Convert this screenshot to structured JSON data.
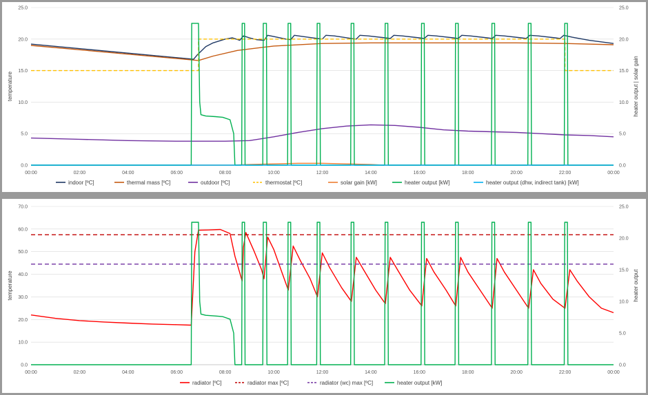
{
  "chart_data": [
    {
      "type": "line",
      "title": "",
      "ylabel": "temperature",
      "y2label": "heater output | solar gain",
      "ylim": [
        0,
        25
      ],
      "y2lim": [
        0,
        25
      ],
      "yticks": [
        "0.0",
        "5.0",
        "10.0",
        "15.0",
        "20.0",
        "25.0"
      ],
      "y2ticks": [
        "0.0",
        "5.0",
        "10.0",
        "15.0",
        "20.0",
        "25.0"
      ],
      "xticks": [
        "00:00",
        "02:00",
        "04:00",
        "06:00",
        "08:00",
        "10:00",
        "12:00",
        "14:00",
        "16:00",
        "18:00",
        "20:00",
        "22:00",
        "00:00"
      ],
      "grid": true,
      "legend": "bottom",
      "series": [
        {
          "name": "indoor [ºC]",
          "color": "#1f3864",
          "dash": "",
          "axis": "left",
          "x": [
            0,
            6.7,
            6.85,
            7.2,
            7.5,
            8,
            8.3,
            8.6,
            8.75,
            9.0,
            9.3,
            9.6,
            9.75,
            10.0,
            10.5,
            10.7,
            10.85,
            11.2,
            11.8,
            12.0,
            12.15,
            12.5,
            13.2,
            13.4,
            13.55,
            13.9,
            14.6,
            14.8,
            14.95,
            15.3,
            16.0,
            16.2,
            16.35,
            16.7,
            17.4,
            17.6,
            17.75,
            18.1,
            18.8,
            19.0,
            19.15,
            19.5,
            20.2,
            20.4,
            20.55,
            20.9,
            21.6,
            21.8,
            21.95,
            22.3,
            23.0,
            24.0
          ],
          "values": [
            19.2,
            16.8,
            17.5,
            18.8,
            19.4,
            20.0,
            20.2,
            19.8,
            20.5,
            20.2,
            19.9,
            19.8,
            20.6,
            20.4,
            20.0,
            19.9,
            20.6,
            20.4,
            20.1,
            20.0,
            20.6,
            20.5,
            20.1,
            20.0,
            20.6,
            20.5,
            20.2,
            20.1,
            20.6,
            20.5,
            20.2,
            20.1,
            20.6,
            20.5,
            20.2,
            20.1,
            20.6,
            20.5,
            20.2,
            20.1,
            20.6,
            20.5,
            20.2,
            20.1,
            20.6,
            20.5,
            20.2,
            20.1,
            20.6,
            20.3,
            19.8,
            19.3
          ]
        },
        {
          "name": "thermal mass [ºC]",
          "color": "#c55a11",
          "dash": "",
          "axis": "left",
          "x": [
            0,
            6.9,
            7.5,
            8.5,
            10.0,
            12.0,
            14.0,
            16.0,
            18.0,
            20.0,
            22.0,
            24.0
          ],
          "values": [
            19.0,
            16.6,
            17.3,
            18.2,
            18.9,
            19.3,
            19.4,
            19.4,
            19.4,
            19.4,
            19.3,
            19.1
          ]
        },
        {
          "name": "outdoor [ºC]",
          "color": "#7030a0",
          "dash": "",
          "axis": "left",
          "x": [
            0,
            2,
            4,
            6,
            8,
            9,
            10,
            11,
            12,
            13,
            14,
            15,
            16,
            17,
            18,
            19,
            20,
            21,
            22,
            23,
            24
          ],
          "values": [
            4.3,
            4.1,
            3.9,
            3.8,
            3.8,
            3.9,
            4.5,
            5.2,
            5.8,
            6.2,
            6.4,
            6.3,
            6.0,
            5.6,
            5.4,
            5.3,
            5.2,
            5.0,
            4.8,
            4.7,
            4.5
          ]
        },
        {
          "name": "thermostat [ºC]",
          "color": "#ffc000",
          "dash": "5,3",
          "axis": "left",
          "x": [
            0,
            6.9,
            6.9,
            22.0,
            22.0,
            24.0
          ],
          "values": [
            15,
            15,
            20,
            20,
            15,
            15
          ]
        },
        {
          "name": "solar gain [kW]",
          "color": "#ed7d31",
          "dash": "",
          "axis": "right",
          "x": [
            0,
            8.3,
            9,
            10,
            11,
            12,
            13,
            14,
            14.5,
            24
          ],
          "values": [
            0,
            0,
            0.1,
            0.2,
            0.3,
            0.3,
            0.2,
            0.1,
            0,
            0
          ]
        },
        {
          "name": "heater output [kW]",
          "color": "#00b050",
          "dash": "",
          "axis": "right",
          "x": [
            0,
            6.6,
            6.62,
            6.9,
            6.95,
            7.0,
            7.2,
            7.6,
            7.9,
            8.2,
            8.35,
            8.4,
            8.68,
            8.7,
            8.8,
            8.82,
            9.55,
            9.57,
            9.7,
            9.72,
            10.57,
            10.59,
            10.7,
            10.72,
            11.77,
            11.79,
            11.9,
            11.92,
            13.17,
            13.19,
            13.3,
            13.32,
            14.57,
            14.59,
            14.7,
            14.72,
            16.07,
            16.09,
            16.2,
            16.22,
            17.47,
            17.49,
            17.6,
            17.62,
            18.97,
            18.99,
            19.1,
            19.12,
            20.47,
            20.49,
            20.6,
            20.62,
            21.97,
            21.99,
            22.1,
            22.12,
            24
          ],
          "values": [
            0,
            0,
            22.5,
            22.5,
            10,
            8.0,
            7.8,
            7.7,
            7.6,
            7.2,
            5,
            0,
            0,
            22.5,
            22.5,
            0,
            0,
            22.5,
            22.5,
            0,
            0,
            22.5,
            22.5,
            0,
            0,
            22.5,
            22.5,
            0,
            0,
            22.5,
            22.5,
            0,
            0,
            22.5,
            22.5,
            0,
            0,
            22.5,
            22.5,
            0,
            0,
            22.5,
            22.5,
            0,
            0,
            22.5,
            22.5,
            0,
            0,
            22.5,
            22.5,
            0,
            0,
            22.5,
            22.5,
            0,
            0
          ]
        },
        {
          "name": "heater output (dhw, indirect tank) [kW]",
          "color": "#00b0f0",
          "dash": "",
          "axis": "right",
          "x": [
            0,
            24
          ],
          "values": [
            0,
            0
          ]
        }
      ]
    },
    {
      "type": "line",
      "title": "",
      "ylabel": "temperature",
      "y2label": "heater output",
      "ylim": [
        0,
        70
      ],
      "y2lim": [
        0,
        25
      ],
      "yticks": [
        "0.0",
        "10.0",
        "20.0",
        "30.0",
        "40.0",
        "50.0",
        "60.0",
        "70.0"
      ],
      "y2ticks": [
        "0.0",
        "5.0",
        "10.0",
        "15.0",
        "20.0",
        "25.0"
      ],
      "xticks": [
        "00:00",
        "02:00",
        "04:00",
        "06:00",
        "08:00",
        "10:00",
        "12:00",
        "14:00",
        "16:00",
        "18:00",
        "20:00",
        "22:00",
        "00:00"
      ],
      "grid": true,
      "legend": "bottom",
      "series": [
        {
          "name": "radiator [ºC]",
          "color": "#ff0000",
          "dash": "",
          "axis": "left",
          "x": [
            0,
            1,
            2,
            3,
            4,
            5,
            6,
            6.6,
            6.75,
            6.9,
            7.3,
            7.8,
            8.2,
            8.4,
            8.7,
            8.75,
            8.85,
            9.2,
            9.5,
            9.6,
            9.75,
            10.0,
            10.3,
            10.6,
            10.8,
            11.1,
            11.5,
            11.8,
            12.0,
            12.3,
            12.8,
            13.2,
            13.4,
            13.7,
            14.2,
            14.6,
            14.8,
            15.1,
            15.6,
            16.1,
            16.3,
            16.6,
            17.1,
            17.5,
            17.7,
            18.0,
            18.5,
            19.0,
            19.2,
            19.5,
            20.0,
            20.5,
            20.7,
            21.0,
            21.5,
            22.0,
            22.2,
            22.5,
            23.0,
            23.5,
            24
          ],
          "values": [
            22.0,
            20.5,
            19.5,
            18.9,
            18.4,
            18.0,
            17.7,
            17.5,
            50,
            59.5,
            59.6,
            59.8,
            58,
            48,
            37,
            52,
            58.5,
            50,
            42,
            38,
            56.5,
            51,
            42,
            33,
            52.5,
            46,
            38,
            30,
            49.5,
            43,
            34,
            28,
            47.5,
            42,
            33,
            27,
            47.5,
            42,
            33,
            26,
            47,
            41,
            33,
            26,
            47.5,
            41,
            33,
            25,
            47,
            41,
            33,
            25,
            42,
            36,
            29,
            25,
            42,
            37,
            30,
            25,
            23
          ]
        },
        {
          "name": "radiator max [ºC]",
          "color": "#c00000",
          "dash": "6,4",
          "axis": "left",
          "x": [
            0,
            24
          ],
          "values": [
            57.5,
            57.5
          ]
        },
        {
          "name": "radiator (wc) max [ºC]",
          "color": "#7030a0",
          "dash": "6,4",
          "axis": "left",
          "x": [
            0,
            24
          ],
          "values": [
            44.5,
            44.5
          ]
        },
        {
          "name": "heater output [kW]",
          "color": "#00b050",
          "dash": "",
          "axis": "right",
          "x": [
            0,
            6.6,
            6.62,
            6.9,
            6.95,
            7.0,
            7.2,
            7.6,
            7.9,
            8.2,
            8.35,
            8.4,
            8.68,
            8.7,
            8.8,
            8.82,
            9.55,
            9.57,
            9.7,
            9.72,
            10.57,
            10.59,
            10.7,
            10.72,
            11.77,
            11.79,
            11.9,
            11.92,
            13.17,
            13.19,
            13.3,
            13.32,
            14.57,
            14.59,
            14.7,
            14.72,
            16.07,
            16.09,
            16.2,
            16.22,
            17.47,
            17.49,
            17.6,
            17.62,
            18.97,
            18.99,
            19.1,
            19.12,
            20.47,
            20.49,
            20.6,
            20.62,
            21.97,
            21.99,
            22.1,
            22.12,
            24
          ],
          "values": [
            0,
            0,
            22.5,
            22.5,
            10,
            8.0,
            7.8,
            7.7,
            7.6,
            7.2,
            5,
            0,
            0,
            22.5,
            22.5,
            0,
            0,
            22.5,
            22.5,
            0,
            0,
            22.5,
            22.5,
            0,
            0,
            22.5,
            22.5,
            0,
            0,
            22.5,
            22.5,
            0,
            0,
            22.5,
            22.5,
            0,
            0,
            22.5,
            22.5,
            0,
            0,
            22.5,
            22.5,
            0,
            0,
            22.5,
            22.5,
            0,
            0,
            22.5,
            22.5,
            0,
            0,
            22.5,
            22.5,
            0,
            0
          ]
        }
      ]
    }
  ]
}
